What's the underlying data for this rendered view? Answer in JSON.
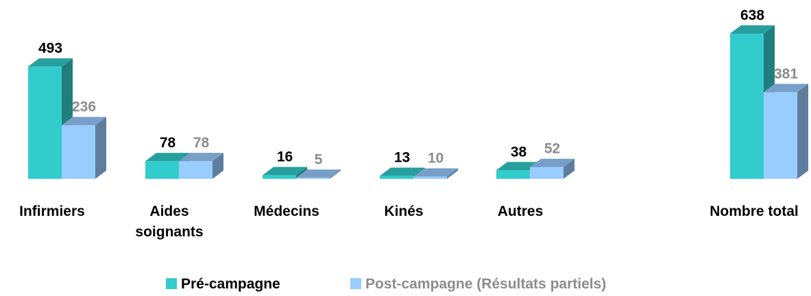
{
  "chart_data": {
    "type": "bar3d",
    "categories": [
      "Infirmiers",
      "Aides soignants",
      "Médecins",
      "Kinés",
      "Autres",
      "Nombre total"
    ],
    "series": [
      {
        "name": "Pré-campagne",
        "color": "#33CCCC",
        "values": [
          493,
          78,
          16,
          13,
          38,
          638
        ]
      },
      {
        "name": "Post-campagne (Résultats partiels)",
        "color": "#99CCFF",
        "values": [
          236,
          78,
          5,
          10,
          52,
          381
        ]
      }
    ],
    "ylim": [
      0,
      638
    ]
  }
}
